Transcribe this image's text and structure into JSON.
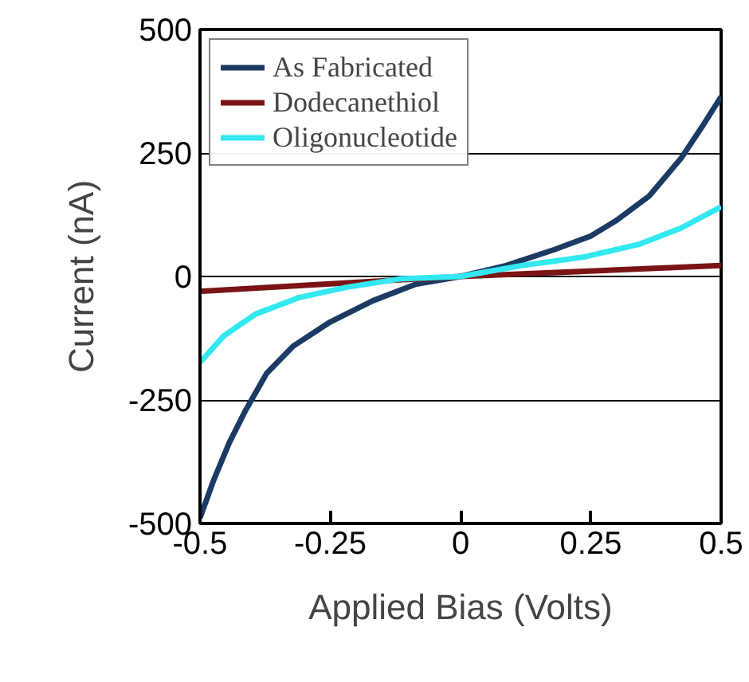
{
  "chart_data": {
    "type": "line",
    "xlabel": "Applied Bias (Volts)",
    "ylabel": "Current (nA)",
    "xlim": [
      -0.5,
      0.5
    ],
    "ylim": [
      -500,
      500
    ],
    "xticks": [
      -0.5,
      -0.25,
      0,
      0.25,
      0.5
    ],
    "yticks": [
      -500,
      -250,
      0,
      250,
      500
    ],
    "grid": "y",
    "legend": "top left",
    "marker": "none",
    "line_style": "solid",
    "series": [
      {
        "name": "As Fabricated",
        "color": "#1b3a64",
        "x": [
          -0.5,
          -0.474,
          -0.444,
          -0.413,
          -0.372,
          -0.321,
          -0.25,
          -0.168,
          -0.087,
          0,
          0.087,
          0.179,
          0.25,
          0.3,
          0.362,
          0.423,
          0.464,
          0.5
        ],
        "values": [
          -489,
          -413,
          -337,
          -272,
          -196,
          -141,
          -92,
          -49,
          -16,
          0,
          22,
          54,
          82,
          114,
          163,
          239,
          304,
          364
        ]
      },
      {
        "name": "Dodecanethiol",
        "color": "#7b1414",
        "x": [
          -0.5,
          0,
          0.5
        ],
        "values": [
          -30,
          0,
          22
        ]
      },
      {
        "name": "Oligonucleotide",
        "color": "#33e8f0",
        "x": [
          -0.5,
          -0.454,
          -0.393,
          -0.311,
          -0.219,
          -0.117,
          0,
          0.117,
          0.24,
          0.342,
          0.423,
          0.5
        ],
        "values": [
          -174,
          -120,
          -76,
          -43,
          -22,
          -5,
          0,
          22,
          40,
          65,
          98,
          141
        ]
      }
    ]
  }
}
